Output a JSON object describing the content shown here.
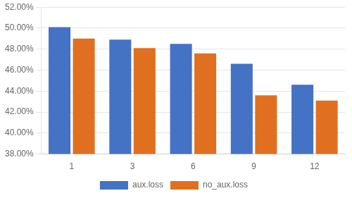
{
  "chart_data": {
    "type": "bar",
    "categories": [
      "1",
      "3",
      "6",
      "9",
      "12"
    ],
    "series": [
      {
        "name": "aux.loss",
        "color": "#4472C4",
        "values": [
          50.1,
          48.9,
          48.5,
          46.6,
          44.6
        ]
      },
      {
        "name": "no_aux.loss",
        "color": "#E07020",
        "values": [
          49.0,
          48.1,
          47.6,
          43.6,
          43.1
        ]
      }
    ],
    "ylim": [
      38.0,
      52.0
    ],
    "yticks": [
      {
        "value": 38.0,
        "label": "38.00%"
      },
      {
        "value": 40.0,
        "label": "40.00%"
      },
      {
        "value": 42.0,
        "label": "42.00%"
      },
      {
        "value": 44.0,
        "label": "44.00%"
      },
      {
        "value": 46.0,
        "label": "46.00%"
      },
      {
        "value": 48.0,
        "label": "48.00%"
      },
      {
        "value": 50.0,
        "label": "50.00%"
      },
      {
        "value": 52.0,
        "label": "52.00%"
      }
    ],
    "grid": true,
    "legend": "bottom"
  }
}
